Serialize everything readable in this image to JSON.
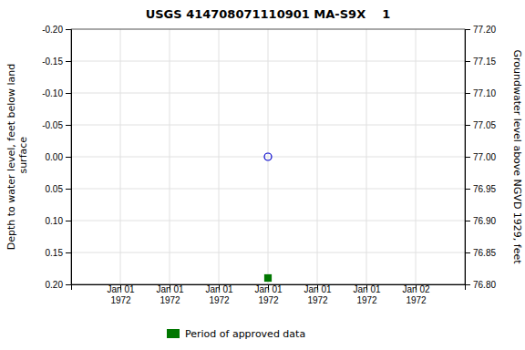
{
  "chart_data": {
    "type": "scatter",
    "title": "USGS 414708071110901 MA-S9X    1",
    "y_label": "Depth to water level, feet below land\n surface",
    "y2_label": "Groundwater level above NGVD 1929, feet",
    "categories": [
      "Jan 01\n1972",
      "Jan 01\n1972",
      "Jan 01\n1972",
      "Jan 01\n1972",
      "Jan 01\n1972",
      "Jan 01\n1972",
      "Jan 02\n1972"
    ],
    "series": [
      {
        "color": "#0000cc",
        "marker": "circle-open",
        "values": [
          null,
          null,
          null,
          0,
          null,
          null,
          null
        ]
      },
      {
        "name": "Period of approved data",
        "color": "#007700",
        "marker": "square",
        "values": [
          null,
          null,
          null,
          0.19,
          null,
          null,
          null
        ]
      }
    ],
    "ylim": [
      0.2,
      -0.2
    ],
    "yticks": [
      {
        "value": -0.2,
        "label": "-0.20"
      },
      -0.15,
      {
        "value": -0.1,
        "label": "-0.10"
      },
      -0.05,
      {
        "value": 0,
        "label": "0.00"
      },
      0.05,
      {
        "value": 0.1,
        "label": "0.10"
      },
      0.15,
      {
        "value": 0.2,
        "label": "0.20"
      }
    ],
    "y2lim": [
      76.8,
      77.2
    ],
    "y2ticks": [
      {
        "value": 77.2,
        "label": "77.20"
      },
      77.15,
      {
        "value": 77.1,
        "label": "77.10"
      },
      77.05,
      {
        "value": 77,
        "label": "77.00"
      },
      76.95,
      {
        "value": 76.9,
        "label": "76.90"
      },
      76.85,
      {
        "value": 76.8,
        "label": "76.80"
      }
    ],
    "grid": true,
    "legend": "bottom"
  }
}
